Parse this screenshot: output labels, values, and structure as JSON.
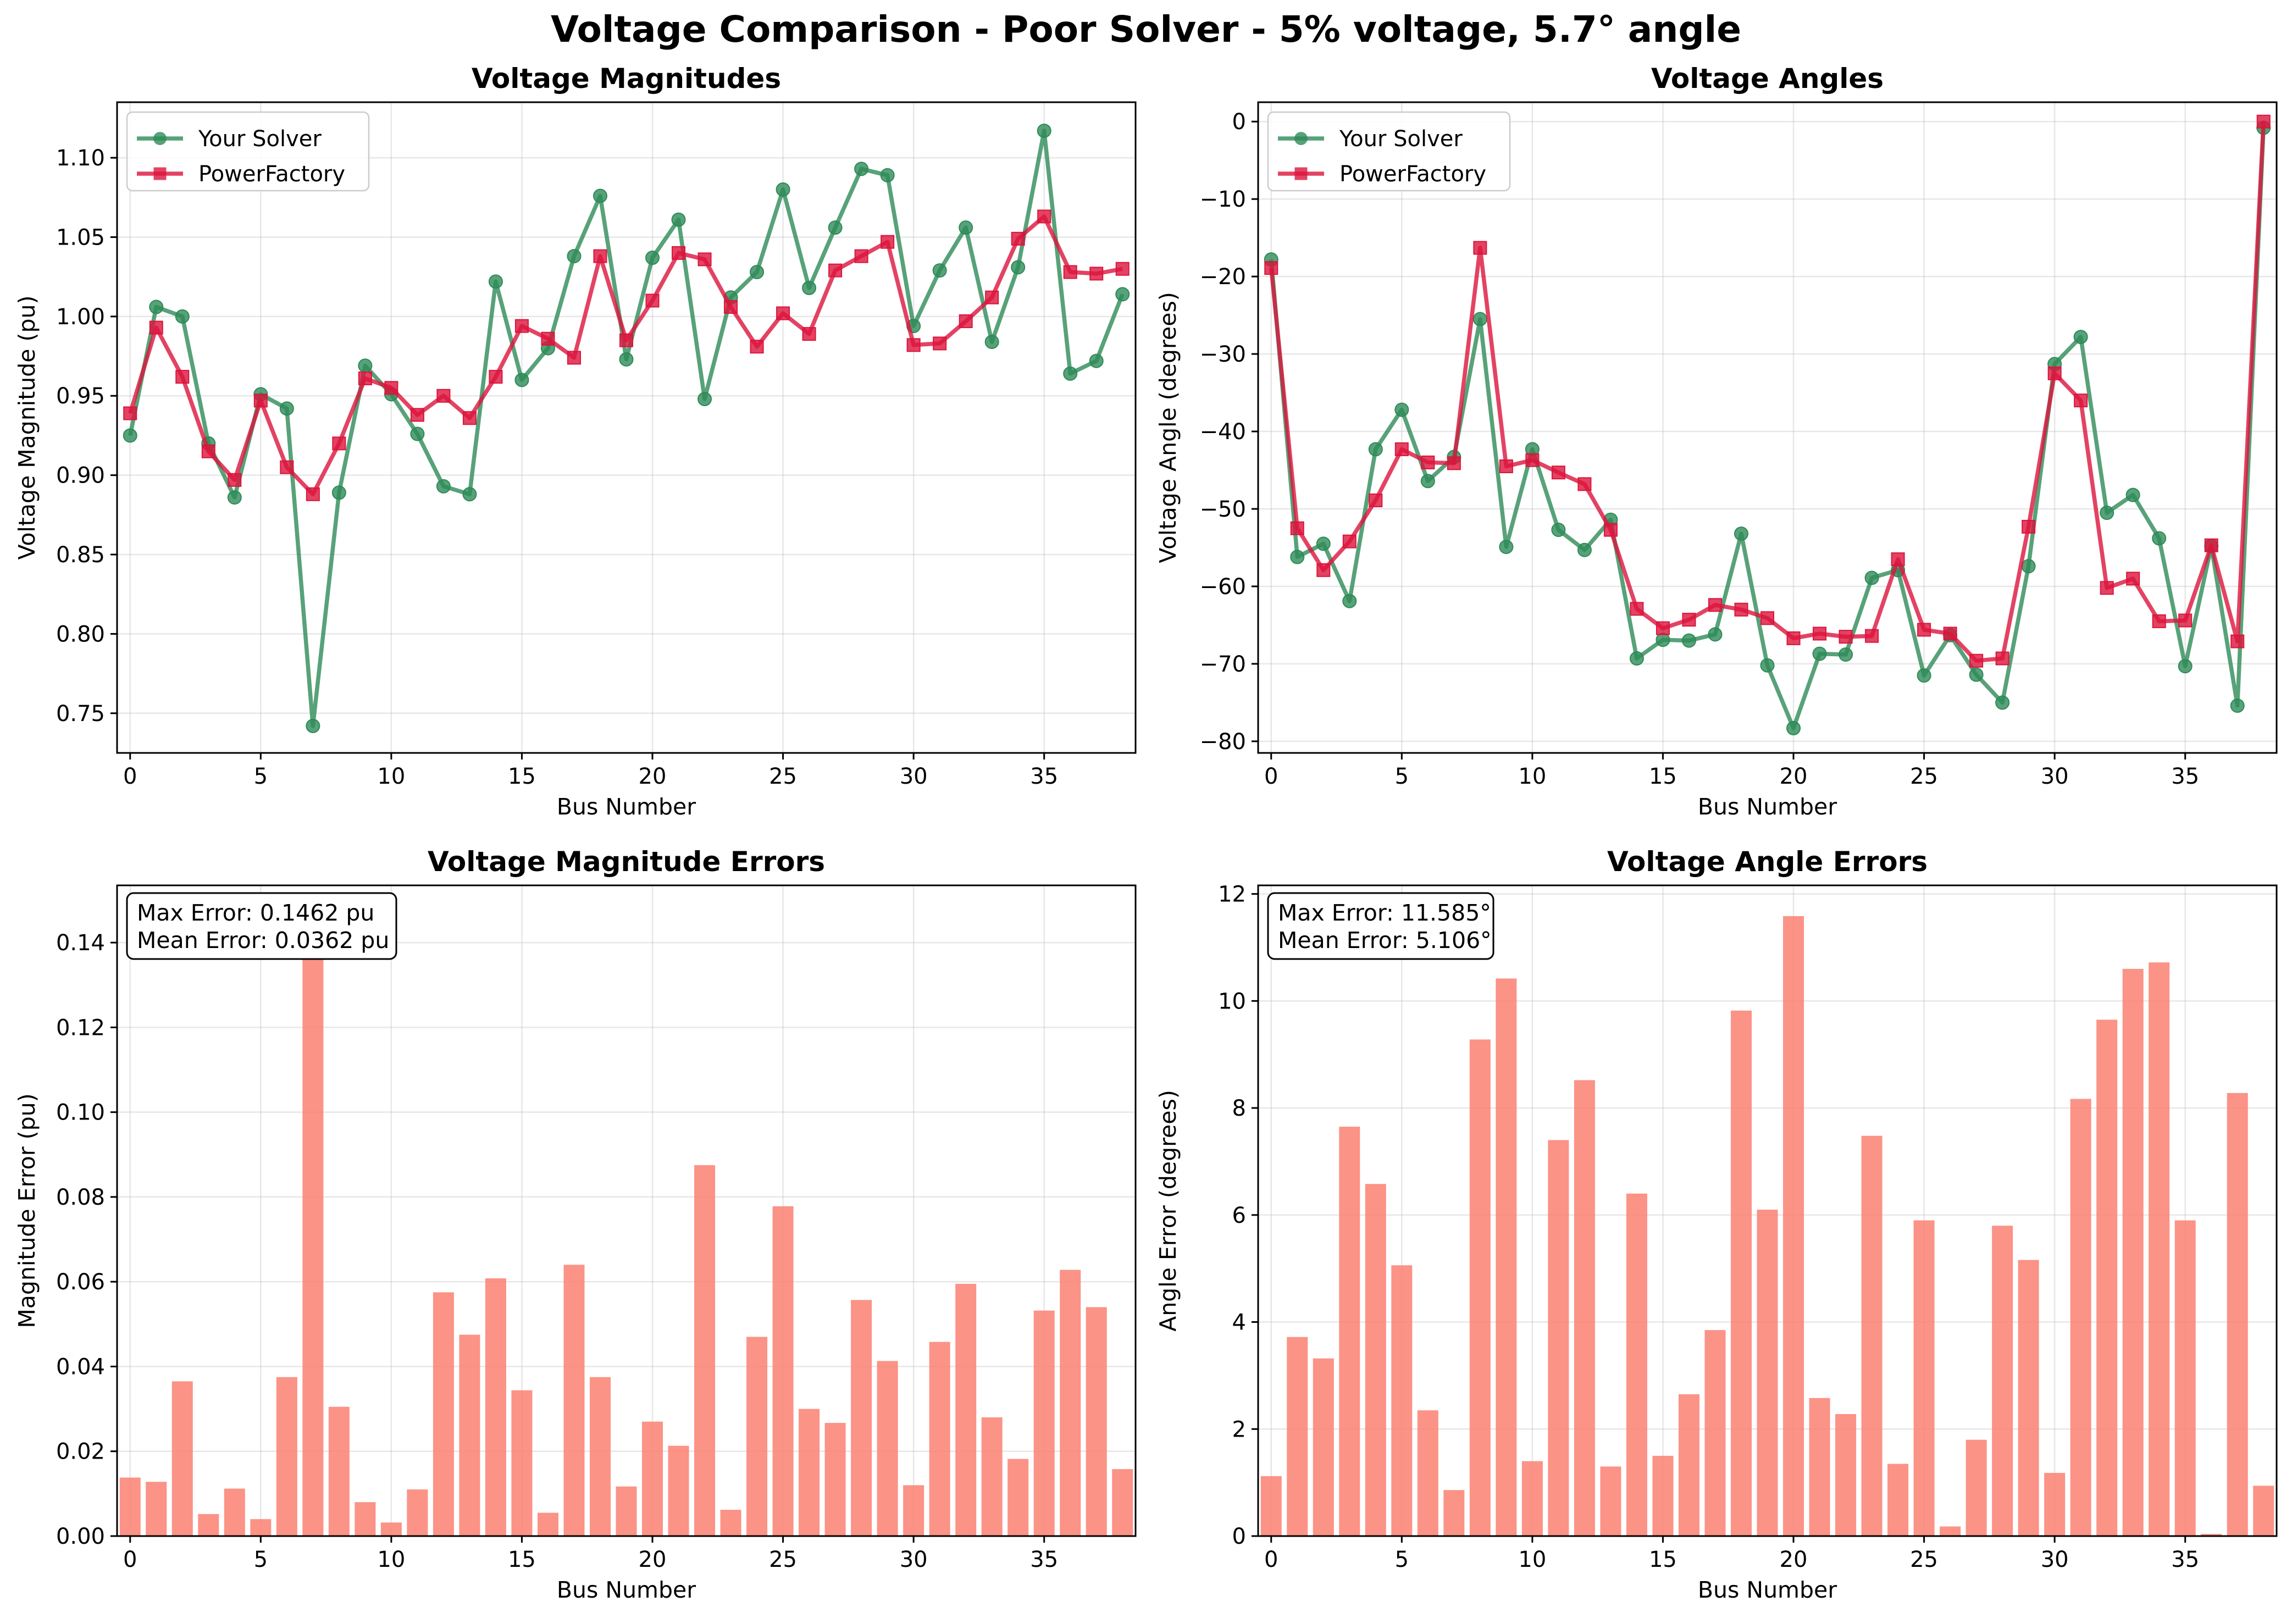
{
  "figure": {
    "title": "Voltage Comparison - Poor Solver - 5% voltage, 5.7° angle"
  },
  "chart_data": [
    {
      "type": "line",
      "title": "Voltage Magnitudes",
      "xlabel": "Bus Number",
      "ylabel": "Voltage Magnitude (pu)",
      "xlim": [
        -0.5,
        38.5
      ],
      "ylim": [
        0.725,
        1.135
      ],
      "xticks": [
        0,
        5,
        10,
        15,
        20,
        25,
        30,
        35
      ],
      "yticks": [
        0.75,
        0.8,
        0.85,
        0.9,
        0.95,
        1.0,
        1.05,
        1.1
      ],
      "ytick_format": 2,
      "grid": true,
      "legend": "upper-left",
      "x": [
        0,
        1,
        2,
        3,
        4,
        5,
        6,
        7,
        8,
        9,
        10,
        11,
        12,
        13,
        14,
        15,
        16,
        17,
        18,
        19,
        20,
        21,
        22,
        23,
        24,
        25,
        26,
        27,
        28,
        29,
        30,
        31,
        32,
        33,
        34,
        35,
        36,
        37,
        38
      ],
      "series": [
        {
          "name": "Your Solver",
          "color": "#2e8b57",
          "marker": "circle",
          "values": [
            0.925,
            1.006,
            1.0,
            0.92,
            0.886,
            0.951,
            0.942,
            0.742,
            0.889,
            0.969,
            0.951,
            0.926,
            0.893,
            0.888,
            1.022,
            0.96,
            0.98,
            1.038,
            1.076,
            0.973,
            1.037,
            1.061,
            0.948,
            1.012,
            1.028,
            1.08,
            1.018,
            1.056,
            1.093,
            1.089,
            0.994,
            1.029,
            1.056,
            0.984,
            1.031,
            1.117,
            0.964,
            0.972,
            1.014
          ]
        },
        {
          "name": "PowerFactory",
          "color": "#dc143c",
          "marker": "square",
          "values": [
            0.939,
            0.993,
            0.962,
            0.915,
            0.897,
            0.947,
            0.905,
            0.888,
            0.92,
            0.961,
            0.955,
            0.938,
            0.95,
            0.936,
            0.962,
            0.994,
            0.986,
            0.974,
            1.038,
            0.985,
            1.01,
            1.04,
            1.036,
            1.006,
            0.981,
            1.002,
            0.989,
            1.029,
            1.038,
            1.047,
            0.982,
            0.983,
            0.997,
            1.012,
            1.049,
            1.063,
            1.028,
            1.027,
            1.03
          ]
        }
      ]
    },
    {
      "type": "line",
      "title": "Voltage Angles",
      "xlabel": "Bus Number",
      "ylabel": "Voltage Angle (degrees)",
      "xlim": [
        -0.5,
        38.5
      ],
      "ylim": [
        -81.5,
        2.5
      ],
      "xticks": [
        0,
        5,
        10,
        15,
        20,
        25,
        30,
        35
      ],
      "yticks": [
        -80,
        -70,
        -60,
        -50,
        -40,
        -30,
        -20,
        -10,
        0
      ],
      "ytick_format": 0,
      "grid": true,
      "legend": "upper-left",
      "x": [
        0,
        1,
        2,
        3,
        4,
        5,
        6,
        7,
        8,
        9,
        10,
        11,
        12,
        13,
        14,
        15,
        16,
        17,
        18,
        19,
        20,
        21,
        22,
        23,
        24,
        25,
        26,
        27,
        28,
        29,
        30,
        31,
        32,
        33,
        34,
        35,
        36,
        37,
        38
      ],
      "series": [
        {
          "name": "Your Solver",
          "color": "#2e8b57",
          "marker": "circle",
          "values": [
            -17.8,
            -56.2,
            -54.5,
            -61.9,
            -42.3,
            -37.2,
            -46.4,
            -43.3,
            -25.5,
            -54.9,
            -42.3,
            -52.7,
            -55.3,
            -51.4,
            -69.3,
            -66.9,
            -67.0,
            -66.2,
            -53.2,
            -70.2,
            -78.3,
            -68.7,
            -68.8,
            -58.9,
            -57.9,
            -71.5,
            -66.3,
            -71.4,
            -75.0,
            -57.4,
            -31.3,
            -27.8,
            -50.5,
            -48.2,
            -53.8,
            -70.3,
            -54.8,
            -75.4,
            -0.8
          ]
        },
        {
          "name": "PowerFactory",
          "color": "#dc143c",
          "marker": "square",
          "values": [
            -18.9,
            -52.5,
            -57.9,
            -54.2,
            -48.9,
            -42.3,
            -44.0,
            -44.1,
            -16.3,
            -44.5,
            -43.7,
            -45.3,
            -46.8,
            -52.7,
            -62.9,
            -65.4,
            -64.3,
            -62.4,
            -63.0,
            -64.1,
            -66.7,
            -66.1,
            -66.5,
            -66.4,
            -56.5,
            -65.6,
            -66.1,
            -69.6,
            -69.3,
            -52.3,
            -32.5,
            -36.0,
            -60.2,
            -59.0,
            -64.5,
            -64.4,
            -54.7,
            -67.1,
            0.0
          ]
        }
      ]
    },
    {
      "type": "bar",
      "title": "Voltage Magnitude Errors",
      "xlabel": "Bus Number",
      "ylabel": "Magnitude Error (pu)",
      "xlim": [
        -0.5,
        38.5
      ],
      "ylim": [
        0,
        0.1535
      ],
      "xticks": [
        0,
        5,
        10,
        15,
        20,
        25,
        30,
        35
      ],
      "yticks": [
        0.0,
        0.02,
        0.04,
        0.06,
        0.08,
        0.1,
        0.12,
        0.14
      ],
      "ytick_format": 2,
      "grid": true,
      "color": "#fa8072",
      "annotation": [
        "Max Error: 0.1462 pu",
        "Mean Error: 0.0362 pu"
      ],
      "x": [
        0,
        1,
        2,
        3,
        4,
        5,
        6,
        7,
        8,
        9,
        10,
        11,
        12,
        13,
        14,
        15,
        16,
        17,
        18,
        19,
        20,
        21,
        22,
        23,
        24,
        25,
        26,
        27,
        28,
        29,
        30,
        31,
        32,
        33,
        34,
        35,
        36,
        37,
        38
      ],
      "values": [
        0.0138,
        0.0128,
        0.0365,
        0.0052,
        0.0112,
        0.004,
        0.0375,
        0.1462,
        0.0305,
        0.008,
        0.0032,
        0.011,
        0.0575,
        0.0475,
        0.0608,
        0.0344,
        0.0055,
        0.064,
        0.0375,
        0.0117,
        0.027,
        0.0213,
        0.0875,
        0.0062,
        0.047,
        0.0778,
        0.03,
        0.0267,
        0.0557,
        0.0413,
        0.012,
        0.0458,
        0.0595,
        0.028,
        0.0182,
        0.0532,
        0.0628,
        0.054,
        0.0158
      ]
    },
    {
      "type": "bar",
      "title": "Voltage Angle Errors",
      "xlabel": "Bus Number",
      "ylabel": "Angle Error (degrees)",
      "xlim": [
        -0.5,
        38.5
      ],
      "ylim": [
        0,
        12.16
      ],
      "xticks": [
        0,
        5,
        10,
        15,
        20,
        25,
        30,
        35
      ],
      "yticks": [
        0,
        2,
        4,
        6,
        8,
        10,
        12
      ],
      "ytick_format": 0,
      "grid": true,
      "color": "#fa8072",
      "annotation": [
        "Max Error: 11.585°",
        "Mean Error: 5.106°"
      ],
      "x": [
        0,
        1,
        2,
        3,
        4,
        5,
        6,
        7,
        8,
        9,
        10,
        11,
        12,
        13,
        14,
        15,
        16,
        17,
        18,
        19,
        20,
        21,
        22,
        23,
        24,
        25,
        26,
        27,
        28,
        29,
        30,
        31,
        32,
        33,
        34,
        35,
        36,
        37,
        38
      ],
      "values": [
        1.12,
        3.72,
        3.32,
        7.65,
        6.58,
        5.06,
        2.35,
        0.86,
        9.28,
        10.42,
        1.4,
        7.4,
        8.52,
        1.3,
        6.4,
        1.5,
        2.65,
        3.85,
        9.82,
        6.1,
        11.585,
        2.58,
        2.28,
        7.48,
        1.35,
        5.9,
        0.18,
        1.8,
        5.8,
        5.16,
        1.18,
        8.17,
        9.65,
        10.6,
        10.72,
        5.9,
        0.04,
        8.28,
        0.94
      ]
    }
  ]
}
